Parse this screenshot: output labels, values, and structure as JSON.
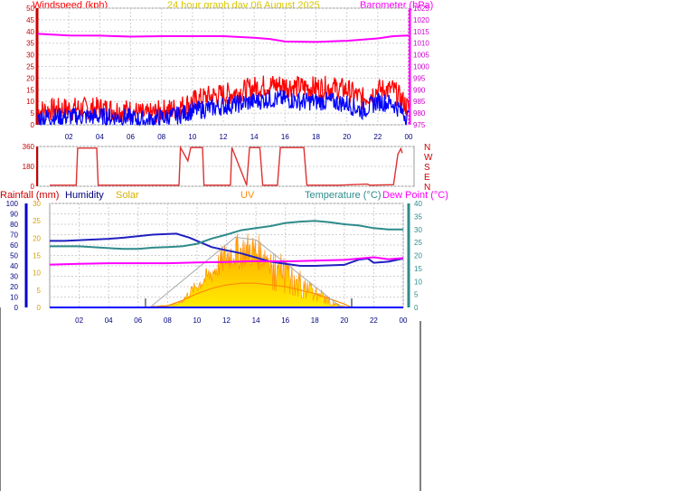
{
  "colors": {
    "wind": "#ff0000",
    "gust_dark": "#0000ff",
    "baro": "#ff00ff",
    "dir": "#e03030",
    "rain": "#0000ff",
    "humidity": "#2020c0",
    "solar": "#ffd700",
    "uv": "#ff8c00",
    "temp": "#2e8b8b",
    "dew": "#ff00ff",
    "grid": "#d0d0d0",
    "xticks": "#000080"
  },
  "header": {
    "windspeed_label": "Windspeed (kph)",
    "title": "24 hour graph day   06 August  2025",
    "barometer_label": "Barometer (hPa)"
  },
  "compass": [
    "N",
    "W",
    "S",
    "E",
    "N"
  ],
  "legend": {
    "rain": "Rainfall (mm)",
    "humidity": "Humidity",
    "solar": "Solar",
    "uv": "UV",
    "temp": "Temperature (°C)",
    "dew": "Dew Point (°C)"
  },
  "chart_data": [
    {
      "type": "line",
      "title": "24 hour graph day   06 August  2025",
      "xlabel": "",
      "ylabel": "Windspeed (kph)",
      "y2label": "Barometer (hPa)",
      "x_ticks": [
        "02",
        "04",
        "06",
        "08",
        "10",
        "12",
        "14",
        "16",
        "18",
        "20",
        "22",
        "00"
      ],
      "ylim": [
        0,
        50
      ],
      "y_ticks": [
        0,
        5,
        10,
        15,
        20,
        25,
        30,
        35,
        40,
        45,
        50
      ],
      "y2lim": [
        975,
        1025
      ],
      "y2_ticks": [
        975,
        980,
        985,
        990,
        995,
        1000,
        1005,
        1010,
        1015,
        1020,
        1025
      ],
      "grid": true,
      "series": [
        {
          "axis": "y2",
          "x": [
            0,
            2,
            4,
            6,
            8,
            10,
            12,
            14,
            15,
            16,
            18,
            20,
            22,
            23,
            24
          ],
          "values": [
            1014,
            1013.3,
            1013.2,
            1012.8,
            1013,
            1013,
            1013,
            1012.3,
            1011.8,
            1010.7,
            1010.5,
            1011,
            1012,
            1013,
            1013.3
          ]
        },
        {
          "axis": "y",
          "x": [
            0,
            2,
            4,
            6,
            7,
            8,
            9,
            10,
            11,
            12,
            13,
            14,
            15,
            16,
            17,
            18,
            19,
            20,
            21,
            22,
            23,
            24
          ],
          "values": [
            6,
            7,
            7,
            6,
            4,
            6,
            7,
            10,
            12,
            13,
            14,
            16,
            17,
            17,
            16,
            16,
            16,
            15,
            11,
            15,
            15,
            7
          ]
        },
        {
          "axis": "y",
          "x": [
            0,
            2,
            4,
            6,
            7,
            8,
            9,
            10,
            11,
            12,
            13,
            14,
            15,
            16,
            17,
            18,
            19,
            20,
            21,
            22,
            23,
            24
          ],
          "values": [
            3,
            3.5,
            3.5,
            3,
            1.5,
            3,
            4,
            6,
            7,
            8,
            9,
            10,
            11,
            11,
            10,
            10,
            10,
            9,
            6,
            10,
            9,
            3
          ]
        }
      ]
    },
    {
      "type": "line",
      "ylabel": "Wind direction",
      "ylim": [
        0,
        360
      ],
      "y_ticks": [
        0,
        180,
        360
      ],
      "series": [
        {
          "x": [
            0,
            1.8,
            1.9,
            3.2,
            3.3,
            6,
            8.8,
            8.9,
            9.4,
            9.6,
            10.4,
            10.5,
            12.3,
            12.4,
            13.4,
            13.6,
            14.3,
            14.5,
            15.5,
            15.7,
            17.3,
            17.5,
            19.5,
            19.7,
            21.6,
            21.8,
            23.4,
            23.7,
            23.9,
            24
          ],
          "values": [
            10,
            10,
            345,
            345,
            10,
            10,
            10,
            350,
            230,
            350,
            350,
            10,
            10,
            350,
            10,
            350,
            350,
            10,
            10,
            350,
            350,
            10,
            10,
            10,
            20,
            10,
            15,
            290,
            340,
            300
          ]
        }
      ]
    },
    {
      "type": "line",
      "x_ticks": [
        "02",
        "04",
        "06",
        "08",
        "10",
        "12",
        "14",
        "16",
        "18",
        "20",
        "22",
        "00"
      ],
      "ylim": [
        0,
        100
      ],
      "y_ticks": [
        0,
        10,
        20,
        30,
        40,
        50,
        60,
        70,
        80,
        90,
        100
      ],
      "y2lim": [
        0,
        30
      ],
      "y2_ticks": [
        0,
        5,
        10,
        15,
        20,
        25,
        30
      ],
      "y3lim": [
        0,
        40
      ],
      "y3_ticks": [
        0,
        5,
        10,
        15,
        20,
        25,
        30,
        35,
        40
      ],
      "grid": true,
      "series": [
        {
          "name": "Rainfall (mm)",
          "axis": "y",
          "x": [
            0,
            24
          ],
          "values": [
            0,
            0
          ]
        },
        {
          "name": "Humidity",
          "axis": "y",
          "x": [
            0,
            1,
            4,
            5,
            7,
            8.6,
            9.5,
            11,
            12,
            13,
            13.5,
            14,
            15,
            16,
            17,
            18,
            20,
            21,
            21.6,
            22,
            23,
            24
          ],
          "values": [
            64,
            64,
            66,
            67,
            70,
            71,
            67,
            58,
            55,
            52,
            50,
            48,
            44,
            42,
            40,
            40,
            41,
            46,
            47,
            43,
            44,
            47
          ]
        },
        {
          "name": "Solar",
          "axis": "y3",
          "x": [
            6.5,
            7,
            8,
            8.6,
            9,
            9.5,
            10,
            10.5,
            11,
            11.5,
            12,
            12.5,
            13,
            13.5,
            14,
            14.5,
            15,
            15.5,
            16,
            16.5,
            17,
            17.5,
            18,
            18.5,
            19,
            19.5,
            20,
            20.5
          ],
          "values": [
            0,
            0.5,
            1,
            1.5,
            3,
            7,
            10,
            13,
            16,
            20,
            24,
            26,
            26,
            27,
            26,
            25,
            23,
            20,
            18,
            16,
            13,
            11,
            8,
            6,
            3,
            1.5,
            0.5,
            0
          ]
        },
        {
          "name": "UV",
          "axis": "y2",
          "x": [
            6.5,
            8,
            9,
            10,
            11,
            12,
            13,
            14,
            15,
            16,
            17,
            18,
            19,
            20,
            20.5
          ],
          "values": [
            0,
            0.5,
            2,
            4,
            5.5,
            6.5,
            7,
            7,
            6.5,
            6,
            5,
            4,
            2.5,
            1,
            0
          ]
        },
        {
          "name": "Temperature (°C)",
          "axis": "y3",
          "x": [
            0,
            2,
            4,
            5,
            6,
            7,
            8,
            9,
            10,
            11,
            12,
            13,
            14,
            15,
            16,
            17,
            18,
            19,
            20,
            21,
            22,
            23,
            24
          ],
          "values": [
            23.5,
            23.5,
            22.8,
            22.5,
            22.5,
            23,
            23.2,
            23.5,
            24.5,
            26.5,
            28,
            29.7,
            30.5,
            31.3,
            32.5,
            33,
            33.3,
            32.8,
            32,
            31.5,
            30.5,
            30,
            30
          ]
        },
        {
          "name": "Dew Point (°C)",
          "axis": "y3",
          "x": [
            0,
            2,
            4,
            6,
            8,
            10,
            12,
            14,
            16,
            18,
            20,
            22,
            23,
            24
          ],
          "values": [
            16.5,
            16.8,
            17,
            17,
            17,
            17.3,
            17.5,
            17.8,
            17.7,
            18,
            18.3,
            19.3,
            18.5,
            19
          ]
        }
      ]
    }
  ]
}
